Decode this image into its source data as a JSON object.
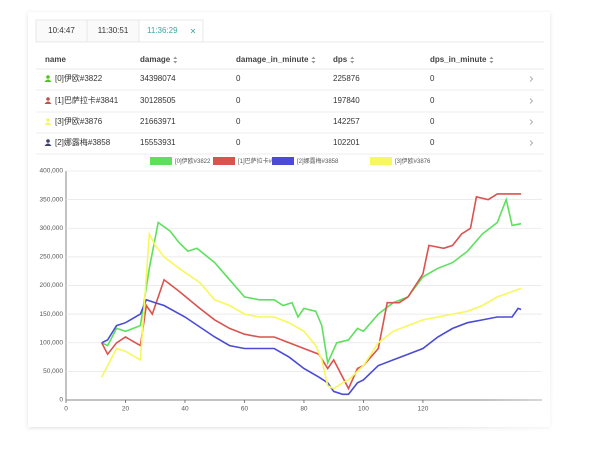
{
  "tabs": {
    "items": [
      "10:4:47",
      "11:30:51",
      "11:36:29"
    ],
    "active": 2
  },
  "table": {
    "columns": [
      "name",
      "damage",
      "damage_in_minute",
      "dps",
      "dps_in_minute"
    ],
    "rows": [
      [
        "[0]伊欧#3822",
        34398074,
        0,
        225876,
        0
      ],
      [
        "[1]巴萨拉卡#3841",
        30128505,
        0,
        197840,
        0
      ],
      [
        "[3]伊欧#3876",
        21663971,
        0,
        142257,
        0
      ],
      [
        "[2]娜露梅#3858",
        15553931,
        0,
        102201,
        0
      ]
    ],
    "row_colors": [
      "#52c41a",
      "#c0504d",
      "#f5f56a",
      "#3a3f6e"
    ]
  },
  "chart_data": {
    "type": "line",
    "xlim": [
      0,
      155
    ],
    "xticks": [
      0,
      20,
      40,
      60,
      80,
      100,
      120
    ],
    "ylim": [
      0,
      400000
    ],
    "yticks": [
      {
        "value": 0,
        "label": "0"
      },
      {
        "value": 50000,
        "label": "50,000"
      },
      {
        "value": 100000,
        "label": "100,000"
      },
      {
        "value": 150000,
        "label": "150,000"
      },
      {
        "value": 200000,
        "label": "200,000"
      },
      {
        "value": 250000,
        "label": "250,000"
      },
      {
        "value": 300000,
        "label": "300,000"
      },
      {
        "value": 350000,
        "label": "350,000"
      },
      {
        "value": 400000,
        "label": "400,000"
      }
    ],
    "grid": true,
    "series": [
      {
        "name": "[0]伊欧#3822",
        "color": "#5ee05e",
        "x": [
          12,
          14,
          17,
          20,
          25,
          28,
          31,
          35,
          38,
          41,
          44,
          50,
          55,
          60,
          65,
          70,
          73,
          76,
          78,
          80,
          84,
          86,
          88,
          91,
          95,
          98,
          100,
          105,
          110,
          115,
          120,
          125,
          130,
          135,
          140,
          145,
          148,
          150,
          153
        ],
        "values": [
          100000,
          95000,
          125000,
          120000,
          130000,
          230000,
          310000,
          295000,
          275000,
          260000,
          265000,
          240000,
          210000,
          180000,
          175000,
          175000,
          165000,
          170000,
          145000,
          160000,
          155000,
          130000,
          65000,
          100000,
          105000,
          125000,
          120000,
          150000,
          170000,
          180000,
          215000,
          230000,
          240000,
          260000,
          290000,
          310000,
          350000,
          305000,
          308000
        ]
      },
      {
        "name": "[1]巴萨拉卡#3841",
        "color": "#d9534f",
        "x": [
          12,
          14,
          17,
          20,
          25,
          27,
          29,
          33,
          38,
          45,
          50,
          55,
          60,
          65,
          70,
          75,
          80,
          85,
          88,
          90,
          93,
          95,
          98,
          100,
          105,
          108,
          112,
          115,
          120,
          122,
          127,
          130,
          133,
          136,
          138,
          142,
          145,
          148,
          153
        ],
        "values": [
          100000,
          80000,
          100000,
          110000,
          95000,
          165000,
          150000,
          210000,
          190000,
          160000,
          140000,
          125000,
          115000,
          110000,
          110000,
          100000,
          90000,
          80000,
          55000,
          70000,
          40000,
          20000,
          55000,
          60000,
          90000,
          170000,
          170000,
          180000,
          220000,
          270000,
          265000,
          270000,
          290000,
          300000,
          355000,
          350000,
          360000,
          360000,
          360000
        ]
      },
      {
        "name": "[2]娜露梅#3858",
        "color": "#4b4bd6",
        "x": [
          12,
          14,
          17,
          20,
          25,
          27,
          30,
          33,
          40,
          50,
          55,
          60,
          65,
          70,
          75,
          80,
          85,
          88,
          90,
          93,
          95,
          98,
          100,
          105,
          110,
          115,
          120,
          125,
          130,
          135,
          140,
          145,
          150,
          152,
          153
        ],
        "values": [
          100000,
          105000,
          130000,
          135000,
          150000,
          175000,
          170000,
          165000,
          145000,
          110000,
          95000,
          90000,
          90000,
          90000,
          75000,
          55000,
          40000,
          30000,
          15000,
          10000,
          10000,
          30000,
          35000,
          60000,
          70000,
          80000,
          90000,
          110000,
          125000,
          135000,
          140000,
          145000,
          145000,
          160000,
          158000
        ]
      },
      {
        "name": "[3]伊欧#3876",
        "color": "#f7f75e",
        "x": [
          12,
          14,
          17,
          20,
          25,
          28,
          30,
          33,
          38,
          45,
          50,
          55,
          60,
          65,
          70,
          75,
          80,
          84,
          86,
          88,
          90,
          93,
          95,
          100,
          105,
          110,
          115,
          120,
          125,
          130,
          135,
          140,
          145,
          153
        ],
        "values": [
          40000,
          60000,
          90000,
          85000,
          70000,
          290000,
          270000,
          250000,
          230000,
          205000,
          175000,
          165000,
          150000,
          145000,
          145000,
          135000,
          120000,
          95000,
          70000,
          25000,
          20000,
          30000,
          35000,
          60000,
          100000,
          120000,
          130000,
          140000,
          145000,
          150000,
          155000,
          165000,
          180000,
          195000
        ]
      }
    ]
  }
}
